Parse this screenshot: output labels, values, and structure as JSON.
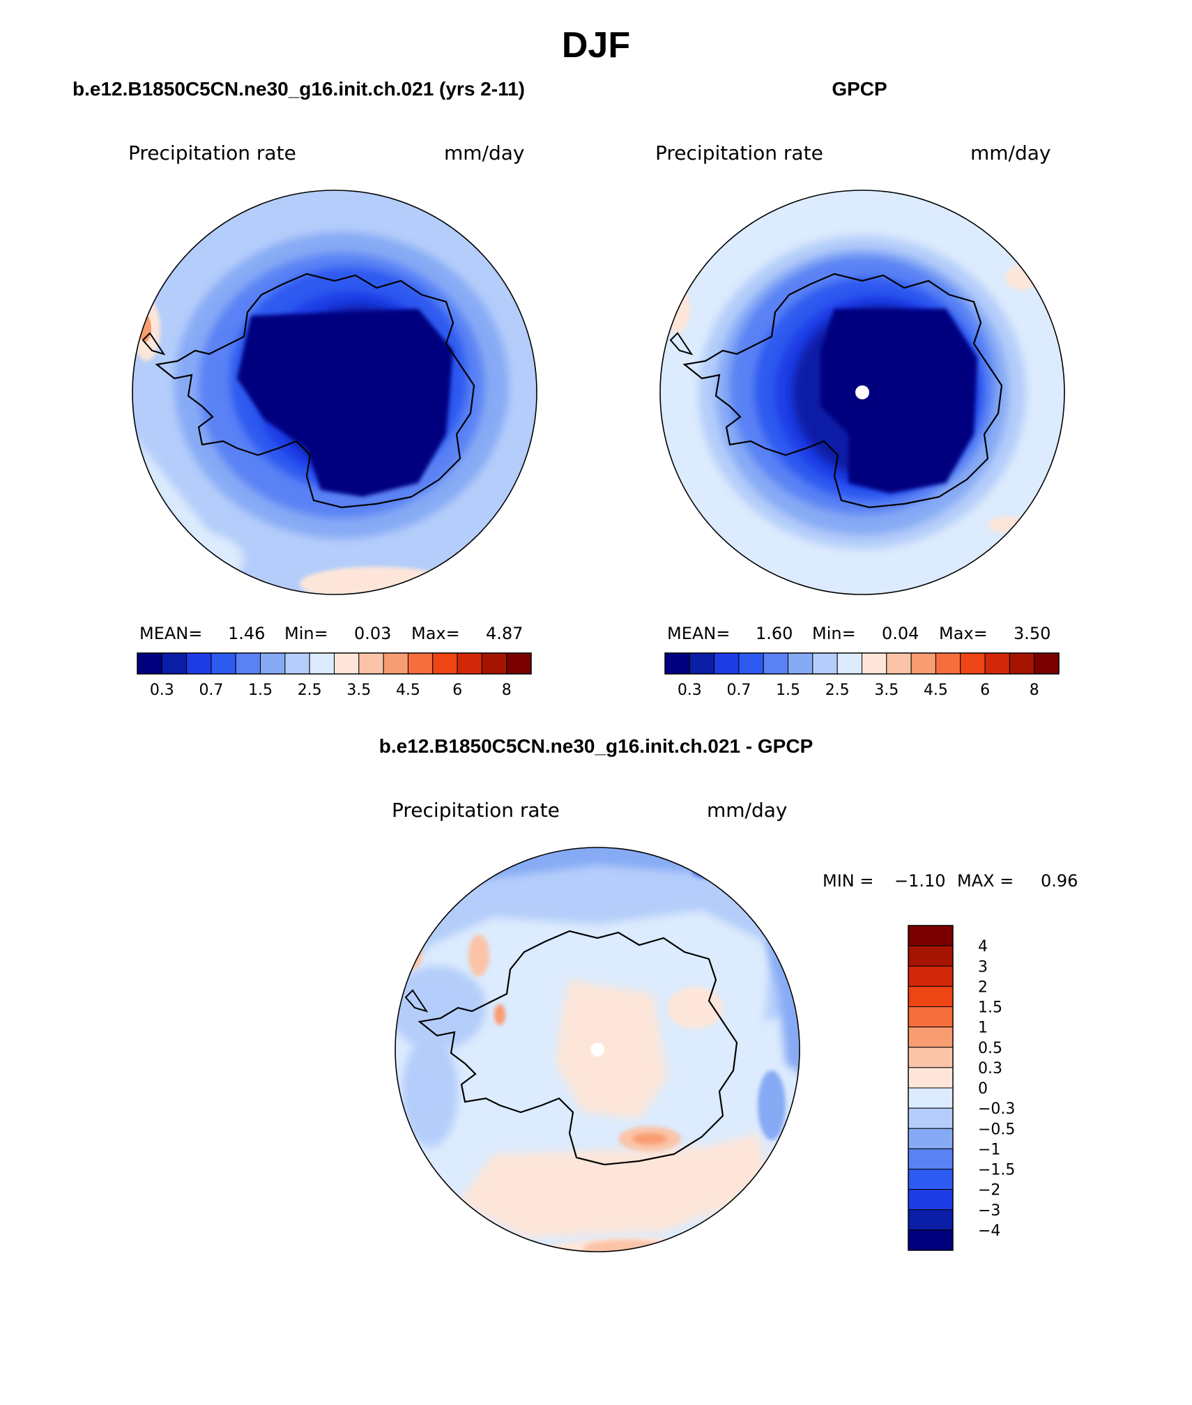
{
  "figure_title": "DJF",
  "colors": {
    "seq_scale": [
      "#00007f",
      "#0a1ea6",
      "#1e3ce6",
      "#2d5af0",
      "#5a82f5",
      "#87aaf5",
      "#b4cdfa",
      "#dcebfd",
      "#fde6d9",
      "#fbc4a8",
      "#f89c72",
      "#f56e3c",
      "#ee4514",
      "#d2280a",
      "#a51400",
      "#7a0000"
    ],
    "diff_scale": [
      "#7a0000",
      "#a51400",
      "#d2280a",
      "#ee4514",
      "#f56e3c",
      "#f89c72",
      "#fbc4a8",
      "#fde6d9",
      "#dcebfd",
      "#b4cdfa",
      "#87aaf5",
      "#5a82f5",
      "#2d5af0",
      "#1e3ce6",
      "#0a1ea6",
      "#00007f"
    ],
    "pole_marker": "#ffffff",
    "coastline": "#000000"
  },
  "panels": {
    "model": {
      "heading": "b.e12.B1850C5CN.ne30_g16.init.ch.021 (yrs 2-11)",
      "variable": "Precipitation rate",
      "units": "mm/day",
      "mean_label": "MEAN=",
      "mean": "1.46",
      "min_label": "Min=",
      "min": "0.03",
      "max_label": "Max=",
      "max": "4.87",
      "colorbar_ticks": [
        "0.3",
        "0.7",
        "1.5",
        "2.5",
        "3.5",
        "4.5",
        "6",
        "8"
      ]
    },
    "obs": {
      "heading": "GPCP",
      "variable": "Precipitation rate",
      "units": "mm/day",
      "mean_label": "MEAN=",
      "mean": "1.60",
      "min_label": "Min=",
      "min": "0.04",
      "max_label": "Max=",
      "max": "3.50",
      "colorbar_ticks": [
        "0.3",
        "0.7",
        "1.5",
        "2.5",
        "3.5",
        "4.5",
        "6",
        "8"
      ]
    },
    "diff": {
      "heading": "b.e12.B1850C5CN.ne30_g16.init.ch.021 - GPCP",
      "variable": "Precipitation rate",
      "units": "mm/day",
      "min_label": "MIN =",
      "min": "−1.10",
      "max_label": "MAX =",
      "max": "0.96",
      "colorbar_ticks": [
        "4",
        "3",
        "2",
        "1.5",
        "1",
        "0.5",
        "0.3",
        "0",
        "−0.3",
        "−0.5",
        "−1",
        "−1.5",
        "−2",
        "−3",
        "−4"
      ]
    }
  }
}
